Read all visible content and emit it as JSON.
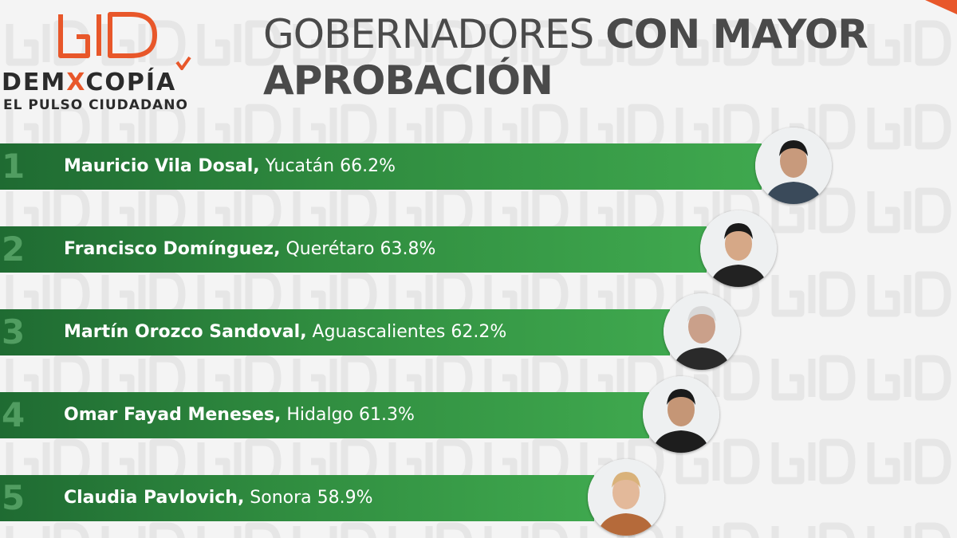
{
  "brand": {
    "name_part1": "DEM",
    "name_x": "X",
    "name_part2": "COPÍA",
    "tagline": "EL PULSO CIUDADANO",
    "accent_color": "#e8572a"
  },
  "header": {
    "title_light": "GOBERNADORES",
    "title_bold_line1": "CON MAYOR",
    "title_bold_line2": "APROBACIÓN"
  },
  "colors": {
    "bar": "#2f8b3f",
    "bar_dark": "#1f6b32",
    "title": "#4a4a4a"
  },
  "chart_data": {
    "type": "bar",
    "orientation": "horizontal",
    "title": "GOBERNADORES CON MAYOR APROBACIÓN",
    "unit": "%",
    "rows": [
      {
        "rank": "1",
        "name": "Mauricio Vila Dosal,",
        "state": "Yucatán",
        "value": 66.2,
        "value_label": "66.2%",
        "photo": "portrait-photo"
      },
      {
        "rank": "2",
        "name": "Francisco Domínguez,",
        "state": "Querétaro",
        "value": 63.8,
        "value_label": "63.8%",
        "photo": "portrait-photo"
      },
      {
        "rank": "3",
        "name": "Martín Orozco Sandoval,",
        "state": "Aguascalientes",
        "value": 62.2,
        "value_label": "62.2%",
        "photo": "portrait-photo"
      },
      {
        "rank": "4",
        "name": "Omar Fayad Meneses,",
        "state": "Hidalgo",
        "value": 61.3,
        "value_label": "61.3%",
        "photo": "portrait-photo"
      },
      {
        "rank": "5",
        "name": "Claudia Pavlovich,",
        "state": "Sonora",
        "value": 58.9,
        "value_label": "58.9%",
        "photo": "portrait-photo"
      }
    ]
  }
}
